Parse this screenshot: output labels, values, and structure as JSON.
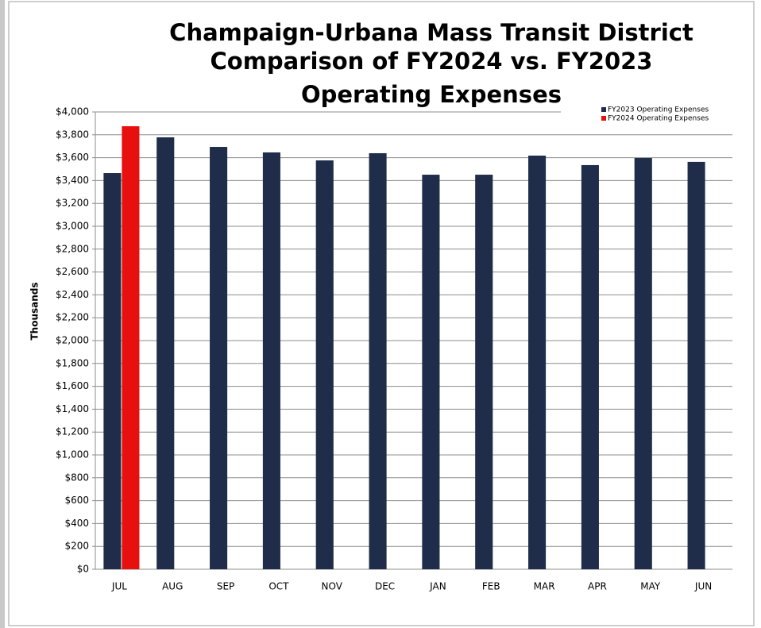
{
  "chart_data": {
    "type": "bar",
    "title": [
      "Champaign-Urbana Mass Transit District",
      "Comparison of FY2024 vs. FY2023",
      "Operating Expenses"
    ],
    "y_label": "Thousands",
    "categories": [
      "JUL",
      "AUG",
      "SEP",
      "OCT",
      "NOV",
      "DEC",
      "JAN",
      "FEB",
      "MAR",
      "APR",
      "MAY",
      "JUN"
    ],
    "series": [
      {
        "name": "FY2023 Operating Expenses",
        "color": "#1f2d4a",
        "values": [
          3465,
          3778,
          3694,
          3646,
          3576,
          3639,
          3451,
          3451,
          3618,
          3535,
          3597,
          3563
        ]
      },
      {
        "name": "FY2024 Operating Expenses",
        "color": "#e8100f",
        "values": [
          3875,
          null,
          null,
          null,
          null,
          null,
          null,
          null,
          null,
          null,
          null,
          null
        ]
      }
    ],
    "ylim": [
      0,
      4000
    ],
    "yticks": [
      {
        "value": 0,
        "label": "$0"
      },
      {
        "value": 200,
        "label": "$200"
      },
      {
        "value": 400,
        "label": "$400"
      },
      {
        "value": 600,
        "label": "$600"
      },
      {
        "value": 800,
        "label": "$800"
      },
      {
        "value": 1000,
        "label": "$1,000"
      },
      {
        "value": 1200,
        "label": "$1,200"
      },
      {
        "value": 1400,
        "label": "$1,400"
      },
      {
        "value": 1600,
        "label": "$1,600"
      },
      {
        "value": 1800,
        "label": "$1,800"
      },
      {
        "value": 2000,
        "label": "$2,000"
      },
      {
        "value": 2200,
        "label": "$2,200"
      },
      {
        "value": 2400,
        "label": "$2,400"
      },
      {
        "value": 2600,
        "label": "$2,600"
      },
      {
        "value": 2800,
        "label": "$2,800"
      },
      {
        "value": 3000,
        "label": "$3,000"
      },
      {
        "value": 3200,
        "label": "$3,200"
      },
      {
        "value": 3400,
        "label": "$3,400"
      },
      {
        "value": 3600,
        "label": "$3,600"
      },
      {
        "value": 3800,
        "label": "$3,800"
      },
      {
        "value": 4000,
        "label": "$4,000"
      }
    ],
    "grid": true,
    "legend": "upper right"
  }
}
